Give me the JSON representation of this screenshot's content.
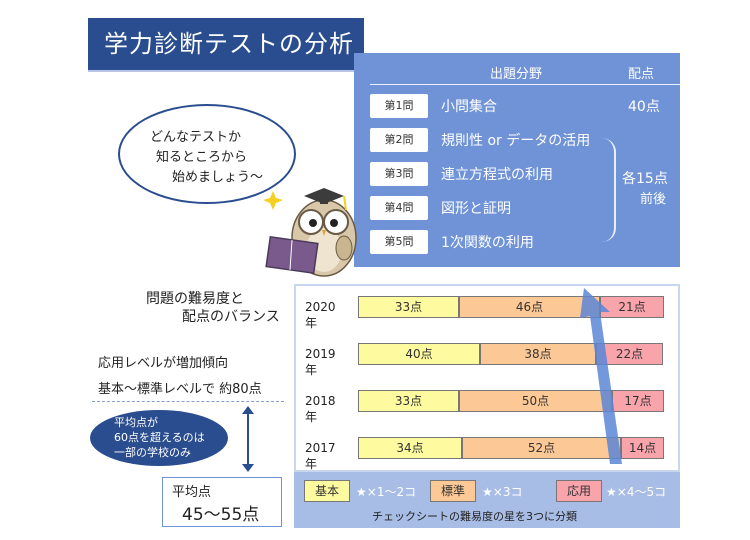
{
  "title": "学力診断テストの分析",
  "table": {
    "header_field": "出題分野",
    "header_points": "配点",
    "rows": [
      {
        "section": "第1問",
        "field": "小問集合"
      },
      {
        "section": "第2問",
        "field": "規則性 or データの活用"
      },
      {
        "section": "第3問",
        "field": "連立方程式の利用"
      },
      {
        "section": "第4問",
        "field": "図形と証明"
      },
      {
        "section": "第5問",
        "field": "1次関数の利用"
      }
    ],
    "points_first": "40点",
    "points_rest_1": "各15点",
    "points_rest_2": "前後"
  },
  "bubble": {
    "line1": "どんなテストか",
    "line2": "知るところから",
    "line3": "始めましょう〜"
  },
  "left": {
    "heading1": "問題の難易度と",
    "heading2": "配点のバランス",
    "trend": "応用レベルが増加傾向",
    "basic_std": "基本〜標準レベルで 約80点",
    "note1": "平均点が",
    "note2": "60点を超えるのは",
    "note3": "一部の学校のみ",
    "avg_label": "平均点",
    "avg_value": "45〜55点"
  },
  "chart_data": {
    "type": "bar",
    "orientation": "horizontal-stacked",
    "categories": [
      "2020年",
      "2019年",
      "2018年",
      "2017年"
    ],
    "series": [
      {
        "name": "基本",
        "values": [
          33,
          40,
          33,
          34
        ],
        "color": "#fefaa0"
      },
      {
        "name": "標準",
        "values": [
          46,
          38,
          50,
          52
        ],
        "color": "#fcc996"
      },
      {
        "name": "応用",
        "values": [
          21,
          22,
          17,
          14
        ],
        "color": "#f9a3ab"
      }
    ],
    "unit": "点"
  },
  "legend": {
    "basic": "基本",
    "basic_note": "★×1〜2コ",
    "std": "標準",
    "std_note": "★×3コ",
    "app": "応用",
    "app_note": "★×4〜5コ",
    "caption": "チェックシートの難易度の星を3つに分類"
  },
  "colors": {
    "navy": "#2a4d8f",
    "panel": "#6f93d6",
    "arrow": "#5b86d6"
  }
}
